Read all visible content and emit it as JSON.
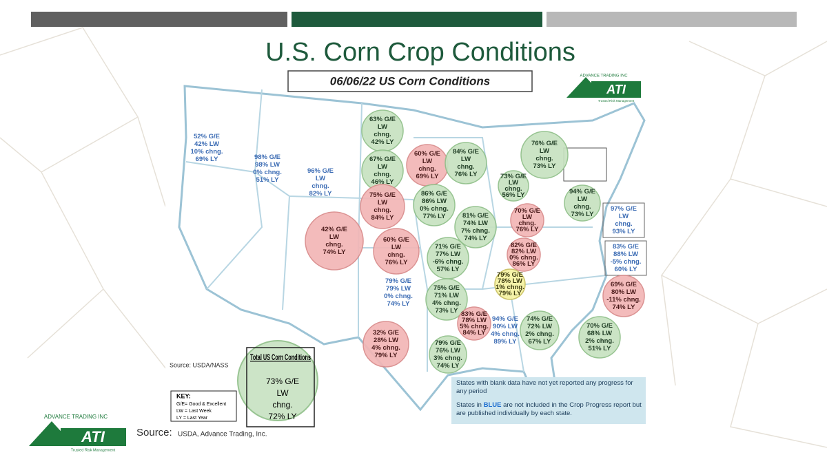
{
  "header": {
    "title": "U.S. Corn Crop Conditions",
    "subtitle": "06/06/22 US Corn Conditions"
  },
  "logo": {
    "company": "ADVANCE TRADING INC",
    "name": "ATI",
    "tagline": "Trusted Risk Management"
  },
  "states": [
    {
      "circle": "blue",
      "lines": [
        "52% G/E",
        "42% LW",
        "10% chng.",
        "69% LY"
      ]
    },
    {
      "circle": "blue",
      "lines": [
        "98% G/E",
        "98% LW",
        "0% chng.",
        "51% LY"
      ]
    },
    {
      "circle": "blue",
      "lines": [
        "96% G/E",
        "LW",
        "chng.",
        "82% LY"
      ]
    },
    {
      "circle": "green",
      "lines": [
        "63% G/E",
        "LW",
        "chng.",
        "42% LY"
      ]
    },
    {
      "circle": "green",
      "lines": [
        "67% G/E",
        "LW",
        "chng.",
        "46% LY"
      ]
    },
    {
      "circle": "red",
      "lines": [
        "60% G/E",
        "LW",
        "chng.",
        "69% LY"
      ]
    },
    {
      "circle": "green",
      "lines": [
        "84% G/E",
        "LW",
        "chng.",
        "76% LY"
      ]
    },
    {
      "circle": "green",
      "lines": [
        "76% G/E",
        "LW",
        "chng.",
        "73% LY"
      ]
    },
    {
      "circle": "green",
      "lines": [
        "73% G/E",
        "LW",
        "chng.",
        "56% LY"
      ]
    },
    {
      "circle": "green",
      "lines": [
        "94% G/E",
        "LW",
        "chng.",
        "73% LY"
      ]
    },
    {
      "circle": "blue",
      "lines": [
        "97% G/E",
        "LW",
        "chng.",
        "93% LY"
      ]
    },
    {
      "circle": "red",
      "lines": [
        "75% G/E",
        "LW",
        "chng.",
        "84% LY"
      ]
    },
    {
      "circle": "green",
      "lines": [
        "86% G/E",
        "86% LW",
        "0% chng.",
        "77% LY"
      ]
    },
    {
      "circle": "green",
      "lines": [
        "81% G/E",
        "74% LW",
        "7% chng.",
        "74% LY"
      ]
    },
    {
      "circle": "red",
      "lines": [
        "70% G/E",
        "LW",
        "chng.",
        "76% LY"
      ]
    },
    {
      "circle": "red",
      "lines": [
        "42% G/E",
        "LW",
        "chng.",
        "74% LY"
      ]
    },
    {
      "circle": "red",
      "lines": [
        "60% G/E",
        "LW",
        "chng.",
        "76% LY"
      ]
    },
    {
      "circle": "green",
      "lines": [
        "71% G/E",
        "77% LW",
        "-6% chng.",
        "57% LY"
      ]
    },
    {
      "circle": "red",
      "lines": [
        "82% G/E",
        "82% LW",
        "0% chng.",
        "86% LY"
      ]
    },
    {
      "circle": "blue",
      "lines": [
        "83% G/E",
        "88% LW",
        "-5% chng.",
        "60% LY"
      ]
    },
    {
      "circle": "blue",
      "lines": [
        "79% G/E",
        "79% LW",
        "0% chng.",
        "74% LY"
      ]
    },
    {
      "circle": "yellow",
      "lines": [
        "79% G/E",
        "78% LW",
        "1% chng.",
        "79% LY"
      ]
    },
    {
      "circle": "red",
      "lines": [
        "69% G/E",
        "80% LW",
        "-11% chng.",
        "74% LY"
      ]
    },
    {
      "circle": "green",
      "lines": [
        "75% G/E",
        "71% LW",
        "4% chng.",
        "73% LY"
      ]
    },
    {
      "circle": "red",
      "lines": [
        "83% G/E",
        "78% LW",
        "5% chng.",
        "84% LY"
      ]
    },
    {
      "circle": "blue",
      "lines": [
        "94% G/E",
        "90% LW",
        "4% chng.",
        "89% LY"
      ]
    },
    {
      "circle": "green",
      "lines": [
        "74% G/E",
        "72% LW",
        "2% chng.",
        "67% LY"
      ]
    },
    {
      "circle": "green",
      "lines": [
        "70% G/E",
        "68% LW",
        "2% chng.",
        "51% LY"
      ]
    },
    {
      "circle": "red",
      "lines": [
        "32% G/E",
        "28% LW",
        "4% chng.",
        "79% LY"
      ]
    },
    {
      "circle": "green",
      "lines": [
        "79% G/E",
        "76% LW",
        "3% chng.",
        "74% LY"
      ]
    }
  ],
  "total": {
    "title": "Total US Corn Conditions",
    "lines": [
      "73% G/E",
      "LW",
      "chng.",
      "72% LY"
    ]
  },
  "key": {
    "title": "KEY:",
    "lines": [
      "G/E= Good & Excellent",
      "LW = Last Week",
      "LY = Last Year"
    ]
  },
  "map_source": "Source: USDA/NASS",
  "notes": {
    "blank": "States with blank data have not yet reported any progress for any period",
    "blue_before": "States in",
    "blue_word": "BLUE",
    "blue_after": "are not included in the Crop Progress report but are published individually by each state."
  },
  "footer": {
    "source_label": "Source:",
    "source": "USDA, Advance Trading, Inc."
  }
}
